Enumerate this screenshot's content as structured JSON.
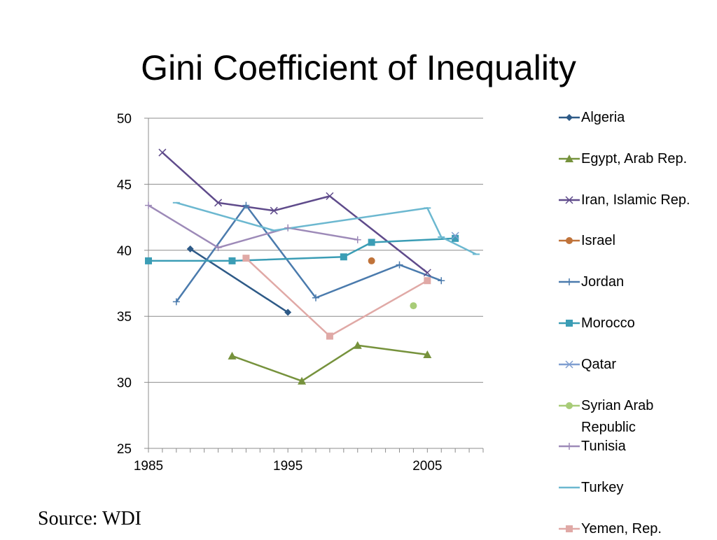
{
  "slide": {
    "title": "Gini Coefficient of Inequality",
    "source": "Source: WDI"
  },
  "chart_data": {
    "type": "line",
    "title": "",
    "xlabel": "",
    "ylabel": "",
    "xlim": [
      1985,
      2009
    ],
    "ylim": [
      25,
      50
    ],
    "y_ticks": [
      25,
      30,
      35,
      40,
      45,
      50
    ],
    "x_ticks": [
      1985,
      1995,
      2005
    ],
    "grid": "horizontal",
    "legend_position": "right",
    "series": [
      {
        "name": "Algeria",
        "color": "#2e5a87",
        "marker": "diamond",
        "x": [
          1988,
          1995
        ],
        "y": [
          40.1,
          35.3
        ]
      },
      {
        "name": "Egypt, Arab Rep.",
        "color": "#76923c",
        "marker": "triangle",
        "x": [
          1991,
          1996,
          2000,
          2005
        ],
        "y": [
          32.0,
          30.1,
          32.8,
          32.1
        ]
      },
      {
        "name": "Iran, Islamic Rep.",
        "color": "#5f4b8b",
        "marker": "x",
        "x": [
          1986,
          1990,
          1994,
          1998,
          2005
        ],
        "y": [
          47.4,
          43.6,
          43.0,
          44.1,
          38.3
        ]
      },
      {
        "name": "Israel",
        "color": "#c0733a",
        "marker": "circle",
        "x": [
          2001
        ],
        "y": [
          39.2
        ]
      },
      {
        "name": "Jordan",
        "color": "#4b7bad",
        "marker": "plus",
        "x": [
          1987,
          1992,
          1997,
          2003,
          2006
        ],
        "y": [
          36.1,
          43.4,
          36.4,
          38.9,
          37.7
        ]
      },
      {
        "name": "Morocco",
        "color": "#3b9db5",
        "marker": "square",
        "x": [
          1985,
          1991,
          1999,
          2001,
          2007
        ],
        "y": [
          39.2,
          39.2,
          39.5,
          40.6,
          40.9
        ]
      },
      {
        "name": "Qatar",
        "color": "#7f9ed0",
        "marker": "x",
        "x": [
          2007
        ],
        "y": [
          41.1
        ]
      },
      {
        "name": "Syrian Arab Republic",
        "color": "#a8cc78",
        "marker": "circle",
        "x": [
          2004
        ],
        "y": [
          35.8
        ]
      },
      {
        "name": "Tunisia",
        "color": "#9d8ab8",
        "marker": "plus",
        "x": [
          1985,
          1990,
          1995,
          2000
        ],
        "y": [
          43.4,
          40.2,
          41.7,
          40.8
        ]
      },
      {
        "name": "Turkey",
        "color": "#6cb8d0",
        "marker": "dash",
        "x": [
          1987,
          1994,
          2005,
          2006,
          2008.5
        ],
        "y": [
          43.6,
          41.5,
          43.2,
          41.0,
          39.7
        ]
      },
      {
        "name": "Yemen, Rep.",
        "color": "#e0a9a6",
        "marker": "square",
        "x": [
          1992,
          1998,
          2005
        ],
        "y": [
          39.4,
          33.5,
          37.7
        ]
      }
    ]
  }
}
